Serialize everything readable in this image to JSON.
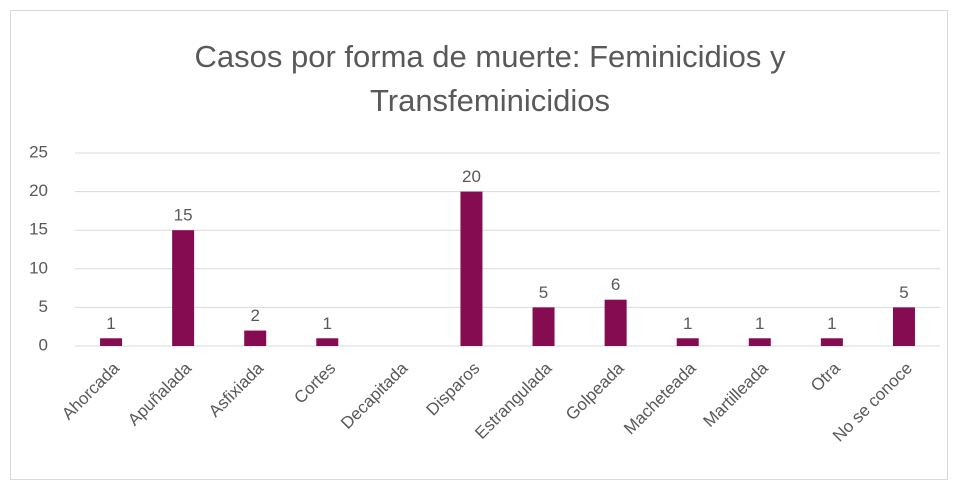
{
  "chart_data": {
    "type": "bar",
    "title": "Casos por forma de muerte: Feminicidios y Transfeminicidios",
    "categories": [
      "Ahorcada",
      "Apuñalada",
      "Asfixiada",
      "Cortes",
      "Decapitada",
      "Disparos",
      "Estrangulada",
      "Golpeada",
      "Macheteada",
      "Martilleada",
      "Otra",
      "No se conoce"
    ],
    "values": [
      1,
      15,
      2,
      1,
      null,
      20,
      5,
      6,
      1,
      1,
      1,
      5
    ],
    "color": "#850c50",
    "ylim": [
      0,
      25
    ],
    "yticks": [
      0,
      5,
      10,
      15,
      20,
      25
    ],
    "grid": true
  }
}
